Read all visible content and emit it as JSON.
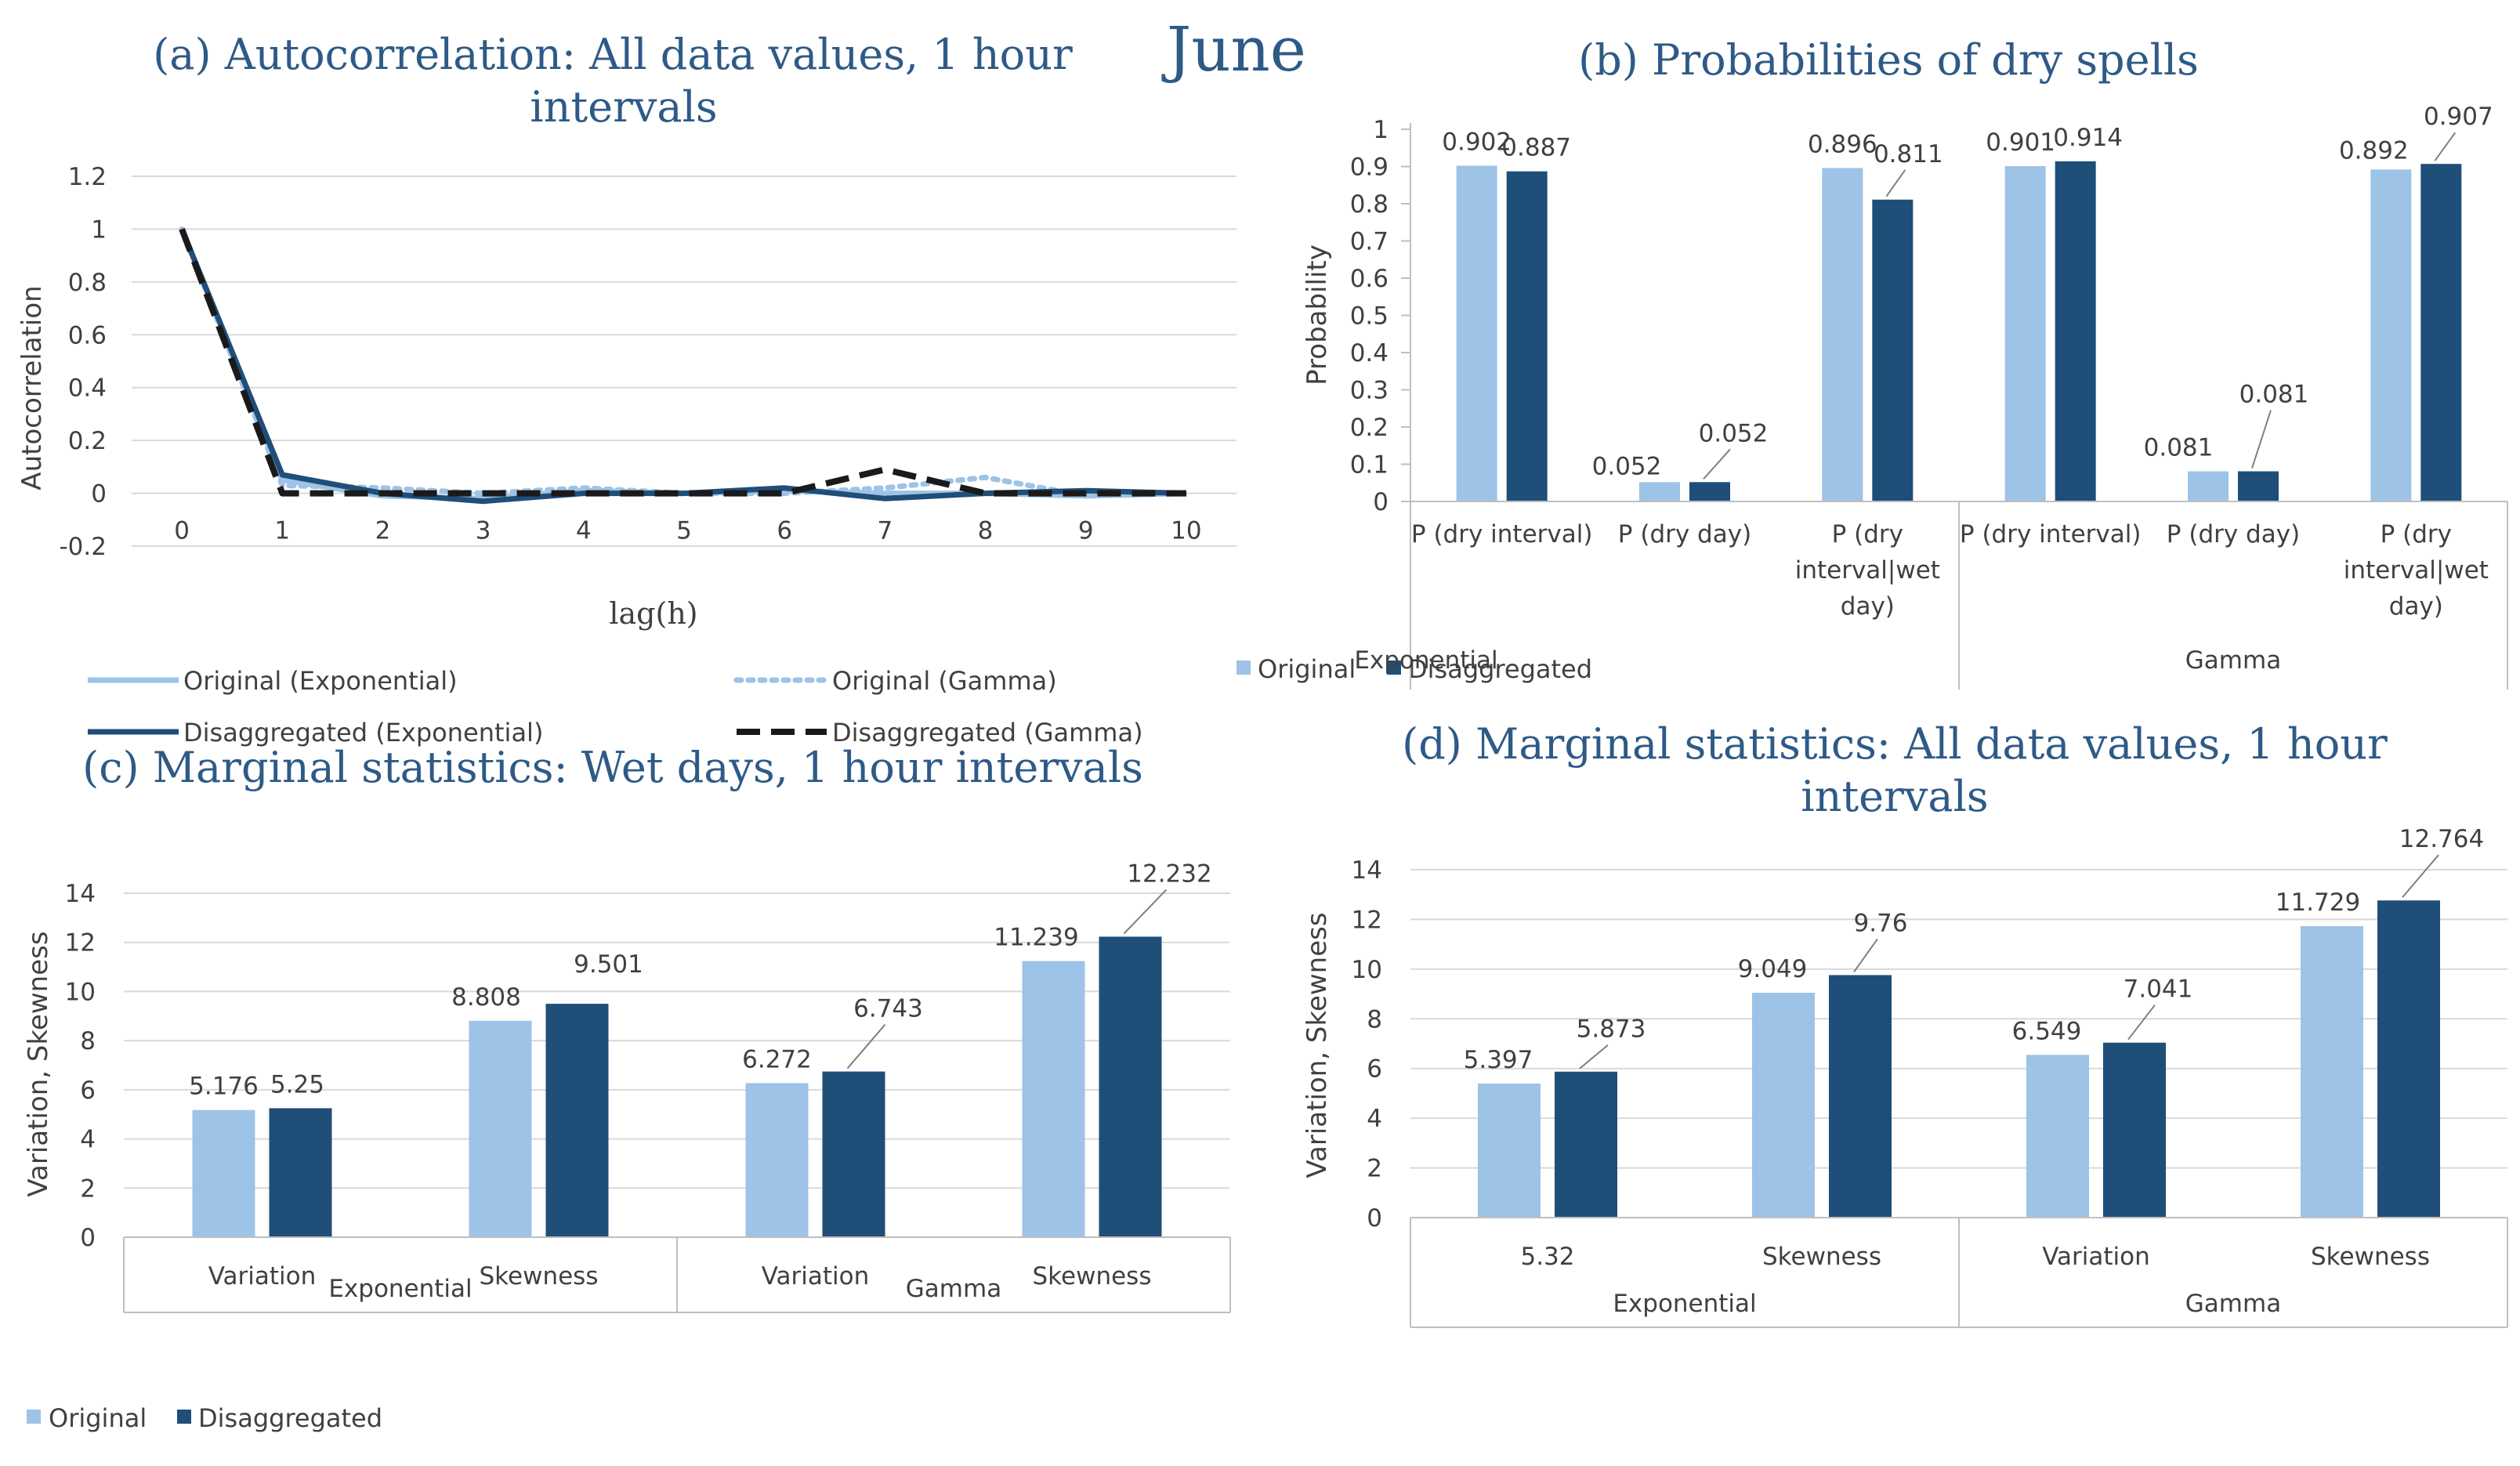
{
  "month_label": "June",
  "colors": {
    "original": "#9dc3e6",
    "disaggregated": "#1f4e79",
    "title": "#2e5a87",
    "grid": "#d9d9d9",
    "text": "#404040",
    "axis": "#bfbfbf"
  },
  "chart_data": [
    {
      "id": "a",
      "type": "line",
      "title_line1": "(a) Autocorrelation: All data values, 1 hour",
      "title_line2": "intervals",
      "xlabel": "lag(h)",
      "ylabel": "Autocorrelation",
      "ylim": [
        -0.2,
        1.2
      ],
      "yticks": [
        -0.2,
        0,
        0.2,
        0.4,
        0.6,
        0.8,
        1,
        1.2
      ],
      "yticklabels": [
        "-0.2",
        "0",
        "0.2",
        "0.4",
        "0.6",
        "0.8",
        "1",
        "1.2"
      ],
      "x": [
        0,
        1,
        2,
        3,
        4,
        5,
        6,
        7,
        8,
        9,
        10
      ],
      "xticklabels": [
        "0",
        "1",
        "2",
        "3",
        "4",
        "5",
        "6",
        "7",
        "8",
        "9",
        "10"
      ],
      "grid": true,
      "legend_placement": "bottom",
      "series": [
        {
          "name": "Original (Exponential)",
          "style": "solid-light",
          "values": [
            1,
            0.05,
            -0.01,
            -0.02,
            0.01,
            0,
            0.01,
            0,
            0,
            -0.01,
            0
          ]
        },
        {
          "name": "Original (Gamma)",
          "style": "dotted-light",
          "values": [
            1,
            0.03,
            0.02,
            0,
            0.02,
            0,
            0,
            0.02,
            0.06,
            -0.01,
            0
          ]
        },
        {
          "name": "Disaggregated (Exponential)",
          "style": "solid-dark",
          "values": [
            1,
            0.07,
            0,
            -0.03,
            0,
            0,
            0.02,
            -0.02,
            0,
            0.01,
            0
          ]
        },
        {
          "name": "Disaggregated (Gamma)",
          "style": "dashed-dark",
          "values": [
            1,
            0,
            0,
            0,
            0,
            0,
            0,
            0.09,
            0,
            0,
            0
          ]
        }
      ]
    },
    {
      "id": "b",
      "type": "bar",
      "title": "(b) Probabilities of dry spells",
      "ylabel": "Probability",
      "ylim": [
        0,
        1
      ],
      "yticks": [
        0,
        0.1,
        0.2,
        0.3,
        0.4,
        0.5,
        0.6,
        0.7,
        0.8,
        0.9,
        1
      ],
      "yticklabels": [
        "0",
        "0.1",
        "0.2",
        "0.3",
        "0.4",
        "0.5",
        "0.6",
        "0.7",
        "0.8",
        "0.9",
        "1"
      ],
      "categories": [
        [
          "P (dry interval)"
        ],
        [
          "P (dry day)"
        ],
        [
          "P (dry",
          "interval|wet",
          "day)"
        ],
        [
          "P (dry interval)"
        ],
        [
          "P (dry day)"
        ],
        [
          "P (dry",
          "interval|wet",
          "day)"
        ]
      ],
      "groups": [
        "Exponential",
        "Gamma"
      ],
      "legend_placement": "bottom-left",
      "series": [
        {
          "name": "Original",
          "values": [
            0.902,
            0.052,
            0.896,
            0.901,
            0.081,
            0.892
          ],
          "labels": [
            "0.902",
            "0.052",
            "0.896",
            "0.901",
            "0.081",
            "0.892"
          ]
        },
        {
          "name": "Disaggregated",
          "values": [
            0.887,
            0.052,
            0.811,
            0.914,
            0.081,
            0.907
          ],
          "labels": [
            "0.887",
            "0.052",
            "0.811",
            "0.914",
            "0.081",
            "0.907"
          ]
        }
      ]
    },
    {
      "id": "c",
      "type": "bar",
      "title": "(c) Marginal statistics: Wet days, 1 hour intervals",
      "ylabel": "Variation, Skewness",
      "ylim": [
        0,
        14
      ],
      "yticks": [
        0,
        2,
        4,
        6,
        8,
        10,
        12,
        14
      ],
      "yticklabels": [
        "0",
        "2",
        "4",
        "6",
        "8",
        "10",
        "12",
        "14"
      ],
      "categories": [
        [
          "Variation"
        ],
        [
          "Skewness"
        ],
        [
          "Variation"
        ],
        [
          "Skewness"
        ]
      ],
      "groups": [
        "Exponential",
        "Gamma"
      ],
      "legend_placement": "bottom-left",
      "series": [
        {
          "name": "Original",
          "values": [
            5.176,
            8.808,
            6.272,
            11.239
          ],
          "labels": [
            "5.176",
            "8.808",
            "6.272",
            "11.239"
          ]
        },
        {
          "name": "Disaggregated",
          "values": [
            5.25,
            9.501,
            6.743,
            12.232
          ],
          "labels": [
            "5.25",
            "9.501",
            "6.743",
            "12.232"
          ]
        }
      ]
    },
    {
      "id": "d",
      "type": "bar",
      "title_line1": "(d) Marginal statistics: All data values, 1 hour",
      "title_line2": "intervals",
      "ylabel": "Variation, Skewness",
      "ylim": [
        0,
        14
      ],
      "yticks": [
        0,
        2,
        4,
        6,
        8,
        10,
        12,
        14
      ],
      "yticklabels": [
        "0",
        "2",
        "4",
        "6",
        "8",
        "10",
        "12",
        "14"
      ],
      "categories": [
        [
          "5.32"
        ],
        [
          "Skewness"
        ],
        [
          "Variation"
        ],
        [
          "Skewness"
        ]
      ],
      "groups": [
        "Exponential",
        "Gamma"
      ],
      "series": [
        {
          "name": "Original",
          "values": [
            5.397,
            9.049,
            6.549,
            11.729
          ],
          "labels": [
            "5.397",
            "9.049",
            "6.549",
            "11.729"
          ]
        },
        {
          "name": "Disaggregated",
          "values": [
            5.873,
            9.76,
            7.041,
            12.764
          ],
          "labels": [
            "5.873",
            "9.76",
            "7.041",
            "12.764"
          ]
        }
      ]
    }
  ]
}
